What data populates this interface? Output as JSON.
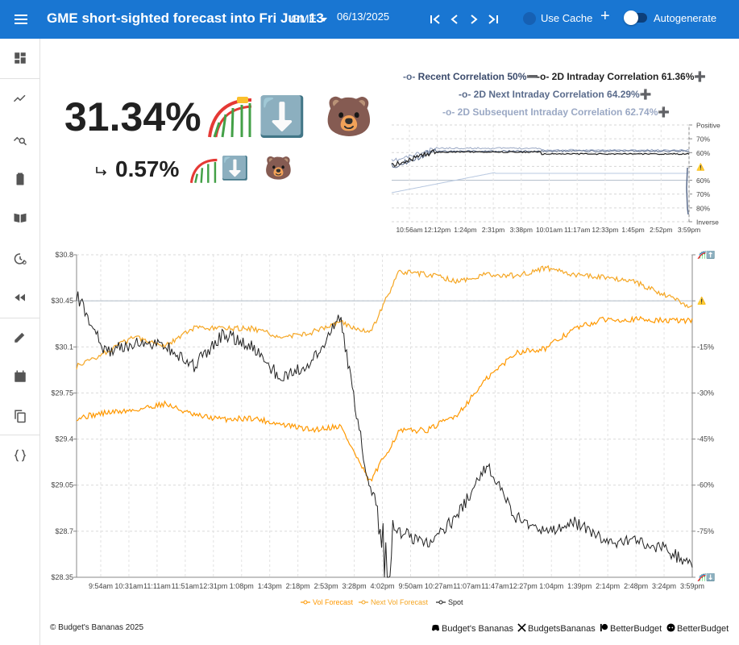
{
  "header": {
    "title": "GME short-sighted forecast into Fri Jun 13",
    "ticker": "GME",
    "date": "06/13/2025",
    "use_cache_label": "Use Cache",
    "add_label": "+",
    "autogenerate_label": "Autogenerate",
    "autogenerate_on": false
  },
  "sidebar": {
    "items": [
      "dashboard-icon",
      "trend-icon",
      "query-stats-icon",
      "battery-icon",
      "book-icon",
      "history-search-icon",
      "rewind-icon",
      "edit-icon",
      "calendar-icon",
      "copy-icon",
      "braces-icon"
    ]
  },
  "forecast": {
    "main_pct": "31.34%",
    "main_emoji_direction": "⬇️",
    "main_emoji_bear": "🐻",
    "sub_pct": "0.57%",
    "sub_emoji_direction": "⬇️",
    "sub_emoji_bear": "🐻"
  },
  "correlation_legend": {
    "recent": "Recent Correlation 50%",
    "recent_suffix": "➖",
    "intraday_2d": "2D Intraday Correlation 61.36%",
    "intraday_2d_suffix": "➕",
    "next_intraday_2d": "2D Next Intraday Correlation 64.29%",
    "next_intraday_2d_suffix": "➕",
    "subsequent_intraday_2d": "2D Subsequent Intraday Correlation 62.74%",
    "subsequent_intraday_2d_suffix": "➕"
  },
  "correlation_chart": {
    "y_right_labels": [
      "Positive",
      "70%",
      "60%",
      "⚠️",
      "60%",
      "70%",
      "80%",
      "Inverse"
    ],
    "x_labels": [
      "10:56am",
      "12:12pm",
      "1:24pm",
      "2:31pm",
      "3:38pm",
      "10:01am",
      "11:17am",
      "12:33pm",
      "1:45pm",
      "2:52pm",
      "3:59pm"
    ]
  },
  "chart_data": {
    "type": "line",
    "x_labels": [
      "9:54am",
      "10:31am",
      "11:11am",
      "11:51am",
      "12:31pm",
      "1:08pm",
      "1:43pm",
      "2:18pm",
      "2:53pm",
      "3:28pm",
      "4:02pm",
      "9:50am",
      "10:27am",
      "11:07am",
      "11:47am",
      "12:27pm",
      "1:04pm",
      "1:39pm",
      "2:14pm",
      "2:48pm",
      "3:24pm",
      "3:59pm"
    ],
    "y_left_labels": [
      "$30.8",
      "$30.45",
      "$30.1",
      "$29.75",
      "$29.4",
      "$29.05",
      "$28.7",
      "$28.35"
    ],
    "y_right_labels": [
      "🎢⬆️",
      "⚠️",
      "-15%",
      "-30%",
      "-45%",
      "-60%",
      "-75%",
      "🎢⬇️"
    ],
    "ylim": [
      28.35,
      30.8
    ],
    "reference_line": 30.45,
    "colors": {
      "vol_forecast": "#ff9800",
      "next_vol_forecast": "#f5a623",
      "spot": "#222222"
    },
    "series": [
      {
        "name": "Vol Forecast",
        "values": [
          29.56,
          29.6,
          29.62,
          29.67,
          29.58,
          29.55,
          29.56,
          29.51,
          29.47,
          29.5,
          29.07,
          29.46,
          29.47,
          29.59,
          29.86,
          30.06,
          30.09,
          30.24,
          30.31,
          30.31,
          30.3,
          30.3
        ]
      },
      {
        "name": "Next Vol Forecast",
        "values": [
          29.95,
          30.06,
          30.18,
          30.11,
          30.24,
          30.24,
          30.24,
          30.17,
          30.21,
          30.29,
          30.2,
          30.67,
          30.65,
          30.6,
          30.65,
          30.64,
          30.7,
          30.65,
          30.63,
          30.6,
          30.5,
          30.4
        ]
      },
      {
        "name": "Spot",
        "values": [
          30.5,
          30.06,
          30.13,
          30.11,
          29.95,
          30.2,
          30.1,
          29.85,
          29.98,
          30.33,
          29.0,
          28.7,
          28.6,
          28.82,
          29.2,
          28.8,
          28.7,
          28.76,
          28.63,
          28.62,
          28.57,
          28.44
        ]
      }
    ],
    "legend": [
      "Vol Forecast",
      "Next Vol Forecast",
      "Spot"
    ]
  },
  "footer": {
    "copyright": "© Budget's Bananas 2025",
    "discord": "Budget's Bananas",
    "x": "BudgetsBananas",
    "patreon": "BetterBudget",
    "reddit": "BetterBudget"
  }
}
